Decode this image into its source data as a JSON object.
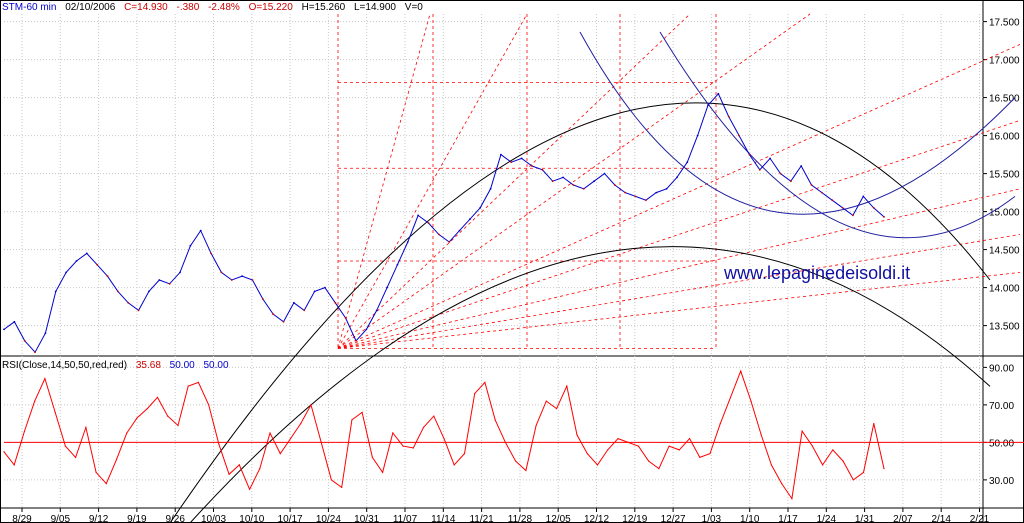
{
  "header": {
    "symbol": "STM-60 min",
    "date": "02/10/2006",
    "close": "C=14.930",
    "change": "-.380",
    "change_pct": "-2.48%",
    "open": "O=15.220",
    "high": "H=15.260",
    "low": "L=14.900",
    "volume": "V=0"
  },
  "rsi_header": {
    "label": "RSI(Close,14,50,50,red,red)",
    "value": "35.68",
    "level1": "50.00",
    "level2": "50.00"
  },
  "watermark": "www.lepaginedeisoldi.it",
  "colors": {
    "price": "#0000cc",
    "down": "#cc0000",
    "arc": "#000000",
    "blue_arc": "#2020a0",
    "fib": "#ff0000",
    "rsi": "#ff0000",
    "grid": "#c8c8c8"
  },
  "chart_data": [
    {
      "type": "line",
      "x_ticks": [
        "8/29",
        "9/05",
        "9/12",
        "9/19",
        "9/26",
        "10/03",
        "10/10",
        "10/17",
        "10/24",
        "10/31",
        "11/07",
        "11/14",
        "11/21",
        "11/28",
        "12/05",
        "12/12",
        "12/19",
        "12/27",
        "1/03",
        "1/10",
        "1/17",
        "1/24",
        "1/31",
        "2/07",
        "2/14",
        "2/21"
      ],
      "y_ticks": [
        "13.500",
        "14.000",
        "14.500",
        "15.000",
        "15.500",
        "16.000",
        "16.500",
        "17.000",
        "17.500"
      ],
      "ylim": [
        13.1,
        17.6
      ],
      "grid": true,
      "series": [
        {
          "values": [
            13.45,
            13.55,
            13.3,
            13.15,
            13.4,
            13.95,
            14.2,
            14.35,
            14.45,
            14.3,
            14.15,
            13.95,
            13.8,
            13.7,
            13.95,
            14.1,
            14.05,
            14.2,
            14.55,
            14.75,
            14.45,
            14.2,
            14.1,
            14.15,
            14.1,
            13.85,
            13.65,
            13.55,
            13.8,
            13.7,
            13.95,
            14.0,
            13.8,
            13.6,
            13.3,
            13.45,
            13.7,
            14.0,
            14.3,
            14.6,
            14.95,
            14.85,
            14.7,
            14.6,
            14.75,
            14.9,
            15.05,
            15.3,
            15.75,
            15.65,
            15.7,
            15.6,
            15.55,
            15.4,
            15.45,
            15.35,
            15.3,
            15.4,
            15.5,
            15.35,
            15.25,
            15.2,
            15.15,
            15.25,
            15.3,
            15.45,
            15.65,
            16.0,
            16.4,
            16.55,
            16.25,
            16.0,
            15.75,
            15.55,
            15.7,
            15.5,
            15.4,
            15.6,
            15.35,
            15.25,
            15.15,
            15.05,
            14.95,
            15.2,
            15.05,
            14.93
          ]
        }
      ]
    },
    {
      "type": "line",
      "y_ticks": [
        "30.00",
        "50.00",
        "70.00",
        "90.00"
      ],
      "ylim": [
        15,
        95
      ],
      "reference_level": 50,
      "series": [
        {
          "values": [
            45,
            38,
            56,
            72,
            84,
            66,
            48,
            42,
            58,
            34,
            28,
            41,
            55,
            63,
            68,
            74,
            64,
            59,
            80,
            82,
            70,
            49,
            33,
            38,
            25,
            36,
            55,
            44,
            52,
            60,
            70,
            50,
            30,
            26,
            62,
            66,
            42,
            34,
            55,
            48,
            47,
            58,
            64,
            52,
            38,
            44,
            76,
            82,
            62,
            50,
            40,
            35,
            59,
            72,
            68,
            80,
            54,
            44,
            38,
            46,
            52,
            50,
            48,
            40,
            36,
            48,
            46,
            52,
            42,
            44,
            60,
            74,
            88,
            72,
            54,
            38,
            28,
            20,
            56,
            48,
            38,
            46,
            40,
            30,
            34,
            60,
            36
          ]
        }
      ]
    }
  ]
}
